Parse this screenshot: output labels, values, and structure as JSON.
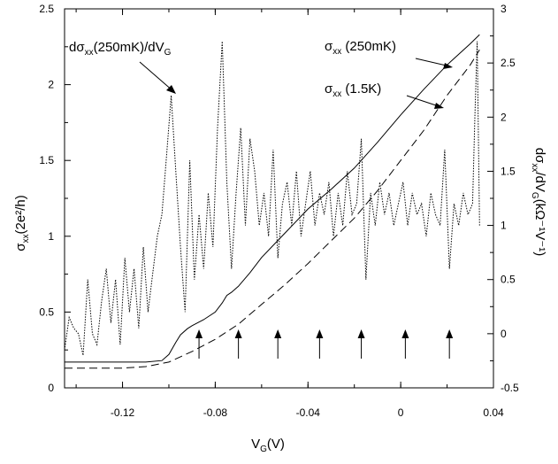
{
  "chart_data": {
    "type": "line",
    "x_axis": {
      "label": "V",
      "label_sub": "G",
      "label_unit": "(V)",
      "range": [
        -0.145,
        0.04
      ],
      "ticks": [
        -0.12,
        -0.08,
        -0.04,
        0,
        0.04
      ],
      "tick_labels": [
        "-0.12",
        "-0.08",
        "-0.04",
        "0",
        "0.04"
      ]
    },
    "y_left": {
      "label": "σ",
      "label_sub": "xx",
      "label_unit": "(2e²/h)",
      "range": [
        0,
        2.5
      ],
      "ticks": [
        0,
        0.5,
        1,
        1.5,
        2,
        2.5
      ],
      "tick_labels": [
        "0",
        "0.5",
        "1",
        "1.5",
        "2",
        "2.5"
      ]
    },
    "y_right": {
      "label": "dσ",
      "label_sub": "xx",
      "label_mid": "/dV",
      "label_sub2": "G",
      "label_unit": "(kΩ⁻¹V⁻¹)",
      "range": [
        -0.5,
        3
      ],
      "ticks": [
        -0.5,
        0,
        0.5,
        1,
        1.5,
        2,
        2.5,
        3
      ],
      "tick_labels": [
        "-0.5",
        "0",
        "0.5",
        "1",
        "1.5",
        "2",
        "2.5",
        "3"
      ]
    },
    "series": [
      {
        "name": "σxx (250mK)",
        "axis": "left",
        "style": "solid",
        "x": [
          -0.145,
          -0.13,
          -0.12,
          -0.11,
          -0.103,
          -0.1,
          -0.097,
          -0.095,
          -0.092,
          -0.09,
          -0.085,
          -0.08,
          -0.077,
          -0.075,
          -0.073,
          -0.07,
          -0.065,
          -0.06,
          -0.055,
          -0.05,
          -0.04,
          -0.03,
          -0.02,
          -0.01,
          0,
          0.01,
          0.02,
          0.03,
          0.034
        ],
        "y": [
          0.17,
          0.17,
          0.17,
          0.17,
          0.18,
          0.22,
          0.3,
          0.35,
          0.39,
          0.41,
          0.45,
          0.5,
          0.56,
          0.61,
          0.63,
          0.67,
          0.76,
          0.86,
          0.94,
          1.02,
          1.18,
          1.31,
          1.45,
          1.62,
          1.8,
          1.97,
          2.13,
          2.27,
          2.33
        ]
      },
      {
        "name": "σxx (1.5K)",
        "axis": "left",
        "style": "dashed",
        "x": [
          -0.145,
          -0.13,
          -0.12,
          -0.11,
          -0.1,
          -0.09,
          -0.08,
          -0.07,
          -0.06,
          -0.05,
          -0.04,
          -0.03,
          -0.02,
          -0.01,
          0,
          0.01,
          0.02,
          0.03,
          0.034
        ],
        "y": [
          0.13,
          0.13,
          0.13,
          0.14,
          0.17,
          0.24,
          0.32,
          0.42,
          0.55,
          0.68,
          0.82,
          0.97,
          1.12,
          1.3,
          1.5,
          1.7,
          1.93,
          2.13,
          2.23
        ]
      },
      {
        "name": "dσxx(250mK)/dVG",
        "axis": "right",
        "style": "dotted",
        "x": [
          -0.145,
          -0.143,
          -0.141,
          -0.139,
          -0.137,
          -0.135,
          -0.133,
          -0.131,
          -0.129,
          -0.127,
          -0.125,
          -0.123,
          -0.121,
          -0.119,
          -0.117,
          -0.115,
          -0.113,
          -0.111,
          -0.109,
          -0.107,
          -0.105,
          -0.103,
          -0.101,
          -0.099,
          -0.097,
          -0.095,
          -0.093,
          -0.091,
          -0.089,
          -0.087,
          -0.085,
          -0.083,
          -0.081,
          -0.079,
          -0.077,
          -0.075,
          -0.073,
          -0.071,
          -0.069,
          -0.067,
          -0.065,
          -0.063,
          -0.061,
          -0.059,
          -0.057,
          -0.055,
          -0.053,
          -0.051,
          -0.049,
          -0.047,
          -0.045,
          -0.043,
          -0.041,
          -0.039,
          -0.037,
          -0.035,
          -0.033,
          -0.031,
          -0.029,
          -0.027,
          -0.025,
          -0.023,
          -0.021,
          -0.019,
          -0.017,
          -0.015,
          -0.013,
          -0.011,
          -0.009,
          -0.007,
          -0.005,
          -0.003,
          -0.001,
          0.001,
          0.003,
          0.005,
          0.007,
          0.009,
          0.011,
          0.013,
          0.015,
          0.017,
          0.019,
          0.021,
          0.023,
          0.025,
          0.027,
          0.029,
          0.031,
          0.032,
          0.033,
          0.034
        ],
        "y": [
          -0.15,
          0.15,
          0.05,
          0.0,
          -0.2,
          0.5,
          0.0,
          -0.1,
          0.3,
          0.6,
          0.1,
          0.5,
          -0.1,
          0.7,
          0.2,
          0.6,
          0.05,
          0.8,
          0.2,
          0.55,
          0.9,
          1.1,
          1.65,
          2.2,
          1.5,
          0.8,
          0.2,
          1.6,
          0.5,
          1.1,
          0.6,
          1.3,
          0.8,
          1.9,
          2.7,
          1.4,
          0.6,
          1.3,
          1.9,
          1.0,
          1.8,
          1.5,
          1.0,
          1.3,
          0.9,
          1.7,
          0.7,
          1.2,
          1.4,
          1.0,
          1.5,
          0.9,
          1.2,
          1.5,
          1.0,
          1.3,
          1.1,
          1.4,
          0.9,
          1.3,
          1.0,
          1.5,
          1.1,
          1.2,
          1.8,
          0.5,
          1.3,
          1.0,
          1.4,
          1.1,
          1.3,
          1.0,
          1.2,
          1.4,
          1.0,
          1.3,
          1.1,
          1.2,
          0.9,
          1.3,
          1.1,
          1.0,
          1.7,
          0.6,
          1.2,
          1.0,
          1.3,
          1.1,
          1.2,
          2.0,
          2.7,
          1.0
        ]
      }
    ],
    "annotations": [
      {
        "target_series": 2,
        "text": "dσ",
        "sub": "xx",
        "rest": "(250mK)/dV",
        "sub2": "G"
      },
      {
        "target_series": 0,
        "text": "σ",
        "sub": "xx",
        "rest": " (250mK)"
      },
      {
        "target_series": 1,
        "text": "σ",
        "sub": "xx",
        "rest": " (1.5K)"
      }
    ],
    "arrow_markers_x": [
      -0.087,
      -0.07,
      -0.053,
      -0.035,
      -0.017,
      0.002,
      0.021
    ],
    "grid": false,
    "legend": "none"
  }
}
